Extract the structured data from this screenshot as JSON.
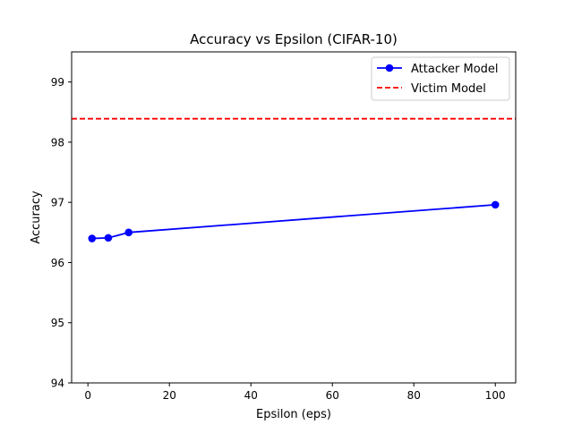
{
  "chart_data": {
    "type": "line",
    "title": "Accuracy vs Epsilon (CIFAR-10)",
    "xlabel": "Epsilon (eps)",
    "ylabel": "Accuracy",
    "xlim": [
      -4,
      105
    ],
    "ylim": [
      94,
      99.5
    ],
    "xticks": [
      0,
      20,
      40,
      60,
      80,
      100
    ],
    "yticks": [
      94,
      95,
      96,
      97,
      98,
      99
    ],
    "grid": false,
    "legend_position": "upper right",
    "series": [
      {
        "name": "Attacker Model",
        "kind": "line-with-markers",
        "color": "#0000ff",
        "x": [
          1,
          5,
          10,
          100
        ],
        "y": [
          96.4,
          96.41,
          96.5,
          96.96
        ]
      },
      {
        "name": "Victim Model",
        "kind": "horizontal-dashed-line",
        "color": "#ff0000",
        "y": 98.39
      }
    ]
  }
}
